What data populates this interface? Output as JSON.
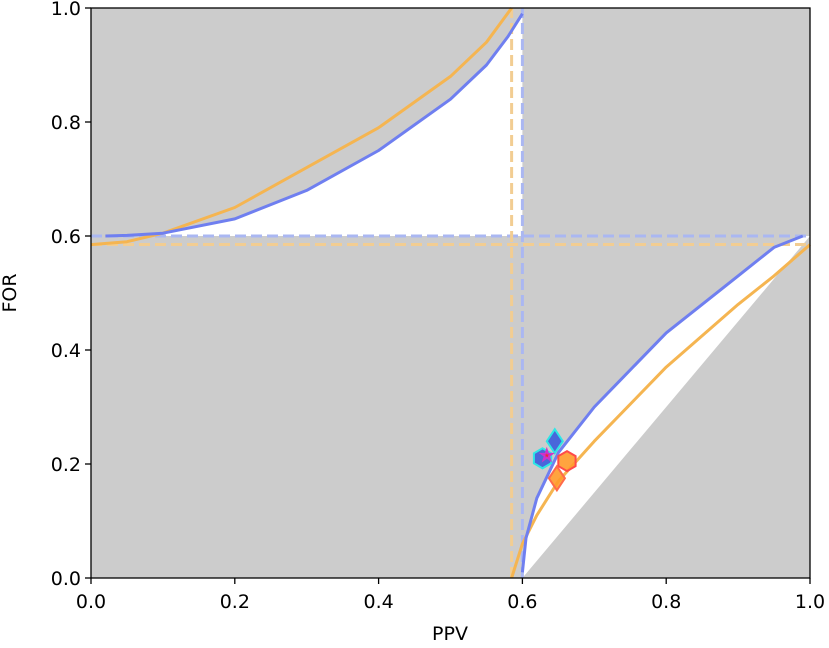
{
  "chart_data": {
    "type": "line",
    "xlabel": "PPV",
    "ylabel": "FOR",
    "xlim": [
      0.0,
      1.0
    ],
    "ylim": [
      0.0,
      1.0
    ],
    "xticks": [
      "0.0",
      "0.2",
      "0.4",
      "0.6",
      "0.8",
      "1.0"
    ],
    "yticks": [
      "0.0",
      "0.2",
      "0.4",
      "0.6",
      "0.8",
      "1.0"
    ],
    "grid": false,
    "legend": "none",
    "colors": {
      "background": "#cccccc",
      "region": "#ffffff",
      "blue": "#6f7ff0",
      "orange": "#f5b551",
      "blue_dash": "#aab7f2",
      "orange_dash": "#f2cd92"
    },
    "series": [
      {
        "color": "#6f7ff0",
        "prevalence": 0.6,
        "dashed_lines": {
          "x": 0.6,
          "y": 0.6
        },
        "upper_curve": {
          "x": [
            0.02,
            0.05,
            0.1,
            0.2,
            0.3,
            0.4,
            0.5,
            0.55,
            0.58,
            0.6
          ],
          "y": [
            0.6,
            0.601,
            0.605,
            0.63,
            0.68,
            0.75,
            0.84,
            0.9,
            0.95,
            0.99
          ]
        },
        "lower_curve": {
          "x": [
            0.6,
            0.605,
            0.62,
            0.65,
            0.7,
            0.8,
            0.9,
            0.95,
            0.99
          ],
          "y": [
            0.01,
            0.07,
            0.14,
            0.22,
            0.3,
            0.43,
            0.53,
            0.58,
            0.6
          ]
        }
      },
      {
        "color": "#f5b551",
        "prevalence": 0.585,
        "dashed_lines": {
          "x": 0.585,
          "y": 0.585
        },
        "upper_curve": {
          "x": [
            0.0,
            0.05,
            0.1,
            0.2,
            0.3,
            0.4,
            0.5,
            0.55,
            0.585
          ],
          "y": [
            0.585,
            0.59,
            0.605,
            0.65,
            0.72,
            0.79,
            0.88,
            0.94,
            1.0
          ]
        },
        "lower_curve": {
          "x": [
            0.585,
            0.6,
            0.62,
            0.65,
            0.7,
            0.8,
            0.9,
            0.95,
            1.0
          ],
          "y": [
            0.0,
            0.06,
            0.11,
            0.17,
            0.24,
            0.37,
            0.48,
            0.53,
            0.585
          ]
        }
      }
    ],
    "markers": [
      {
        "shape": "diamond",
        "x": 0.645,
        "y": 0.24,
        "fill": "#3b5bdb",
        "stroke": "#2ee6e6"
      },
      {
        "shape": "hexagon",
        "x": 0.628,
        "y": 0.21,
        "fill": "#3b5bdb",
        "stroke": "#2ee6e6"
      },
      {
        "shape": "star",
        "x": 0.634,
        "y": 0.215,
        "fill": "#ff2020",
        "stroke": "#cc33cc"
      },
      {
        "shape": "hexagon",
        "x": 0.662,
        "y": 0.205,
        "fill": "#ff9a2a",
        "stroke": "#ff4a4a"
      },
      {
        "shape": "diamond",
        "x": 0.648,
        "y": 0.175,
        "fill": "#ff9a2a",
        "stroke": "#ff6a4a"
      }
    ]
  }
}
